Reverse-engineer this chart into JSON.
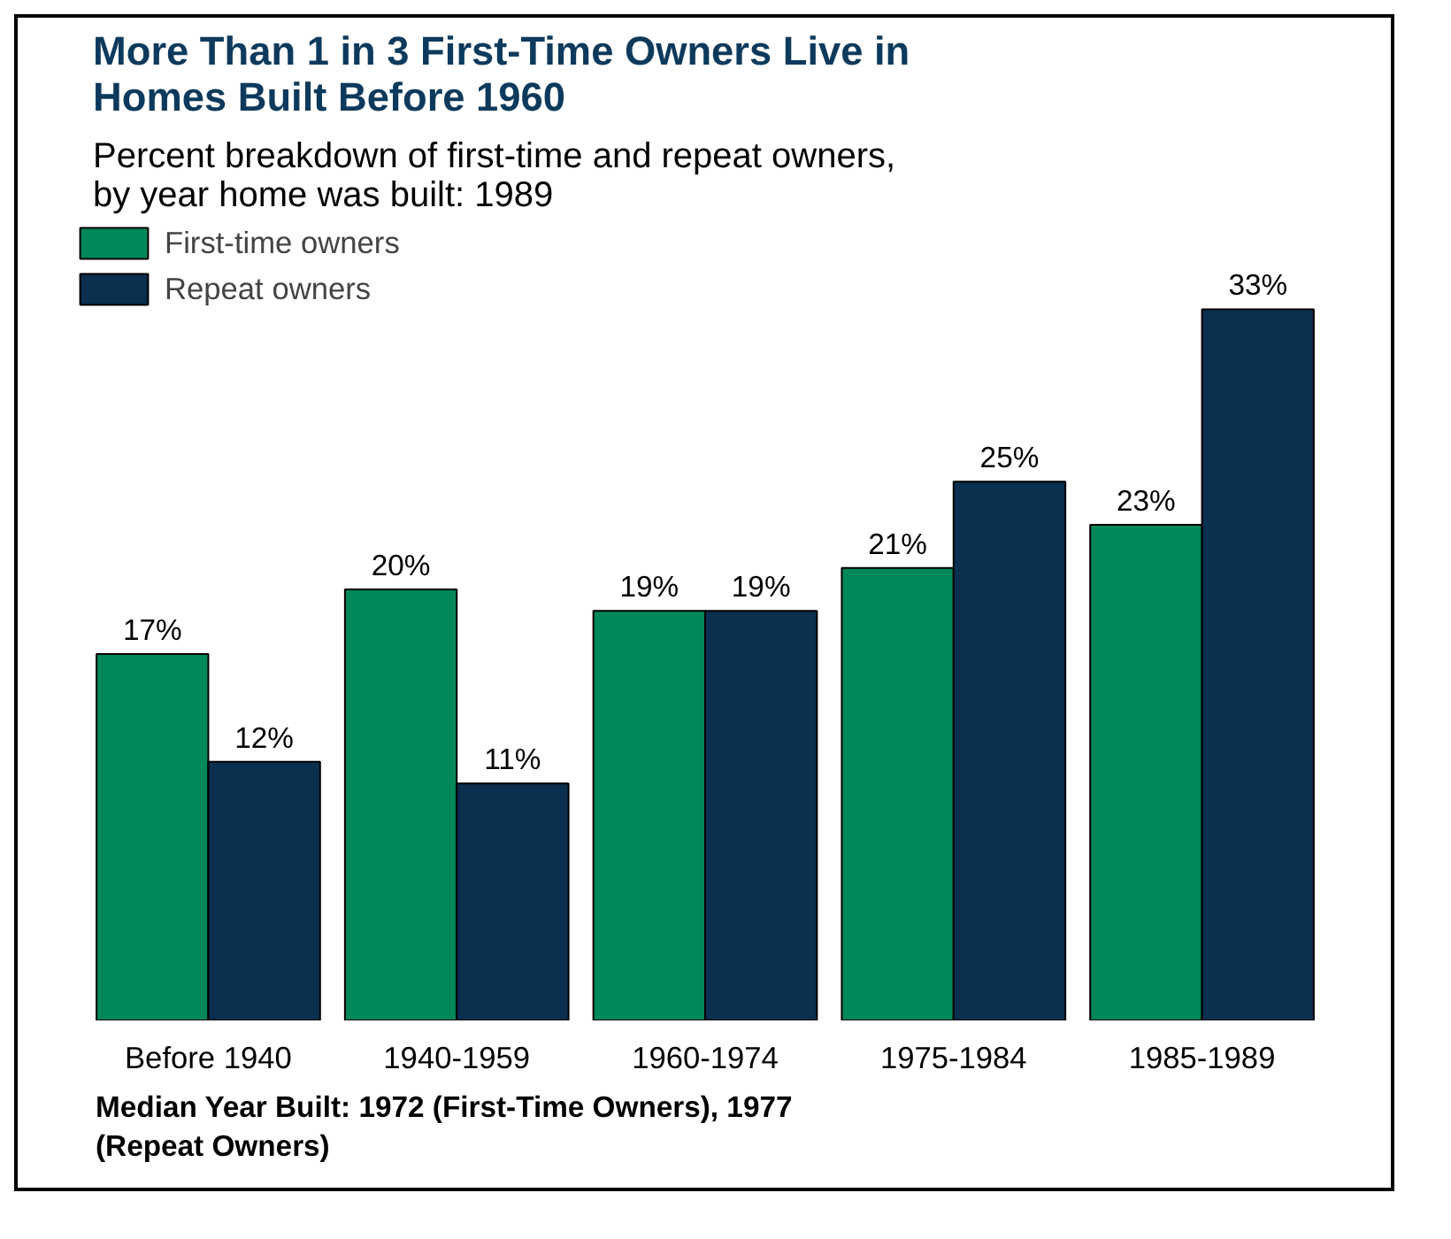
{
  "chart_data": {
    "type": "bar",
    "title": "More Than 1 in 3 First-Time Owners Live in Homes Built Before 1960",
    "subtitle": "Percent breakdown of first-time and repeat owners, by year home was built:  1989",
    "categories": [
      "Before 1940",
      "1940-1959",
      "1960-1974",
      "1975-1984",
      "1985-1989"
    ],
    "series": [
      {
        "name": "First-time owners",
        "color": "#00875a",
        "values": [
          17,
          20,
          19,
          21,
          23
        ],
        "value_labels": [
          "17%",
          "20%",
          "19%",
          "21%",
          "23%"
        ]
      },
      {
        "name": "Repeat owners",
        "color": "#0a2f4f",
        "values": [
          12,
          11,
          19,
          25,
          33
        ],
        "value_labels": [
          "12%",
          "11%",
          "19%",
          "25%",
          "33%"
        ]
      }
    ],
    "annotations": [
      "Median Year Built:  1972 (First-Time Owners), 1977 (Repeat Owners)"
    ],
    "legend": "top left",
    "grid": false
  }
}
